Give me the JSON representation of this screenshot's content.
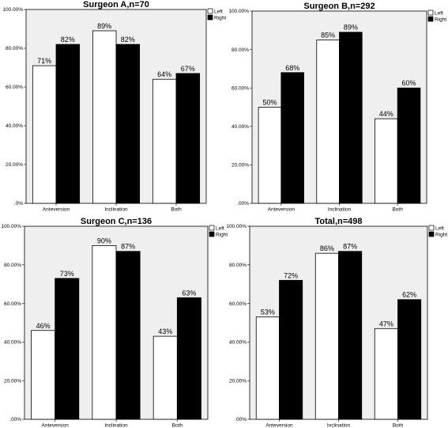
{
  "chart_data": [
    {
      "type": "bar",
      "title": "Surgeon A,n=70",
      "categories": [
        "Anteversion",
        "Inclination",
        "Both"
      ],
      "series": [
        {
          "name": "Left",
          "values": [
            71,
            89,
            64
          ],
          "labels": [
            "71%",
            "89%",
            "64%"
          ],
          "color": "#ffffff"
        },
        {
          "name": "Right",
          "values": [
            82,
            82,
            67
          ],
          "labels": [
            "82%",
            "82%",
            "67%"
          ],
          "color": "#000000"
        }
      ],
      "yticks": [
        ".0%",
        "20.00%",
        "40.00%",
        "60.00%",
        "80.00%",
        "100.00%"
      ],
      "ylim": [
        0,
        100
      ],
      "xlabel": "",
      "ylabel": "",
      "legend": "top-right",
      "grid": false
    },
    {
      "type": "bar",
      "title": "Surgeon B,n=292",
      "categories": [
        "Anteversion",
        "Inclination",
        "Both"
      ],
      "series": [
        {
          "name": "Left",
          "values": [
            50,
            85,
            44
          ],
          "labels": [
            "50%",
            "85%",
            "44%"
          ],
          "color": "#ffffff"
        },
        {
          "name": "Right",
          "values": [
            68,
            89,
            60
          ],
          "labels": [
            "68%",
            "89%",
            "60%"
          ],
          "color": "#000000"
        }
      ],
      "yticks": [
        ".00%",
        "20.00%",
        "40.00%",
        "60.00%",
        "80.00%",
        "100.00%"
      ],
      "ylim": [
        0,
        100
      ],
      "xlabel": "",
      "ylabel": "",
      "legend": "top-right",
      "grid": false
    },
    {
      "type": "bar",
      "title": "Surgeon C,n=136",
      "categories": [
        "Anteversion",
        "Inclination",
        "Both"
      ],
      "series": [
        {
          "name": "Left",
          "values": [
            46,
            90,
            43
          ],
          "labels": [
            "46%",
            "90%",
            "43%"
          ],
          "color": "#ffffff"
        },
        {
          "name": "Right",
          "values": [
            73,
            87,
            63
          ],
          "labels": [
            "73%",
            "87%",
            "63%"
          ],
          "color": "#000000"
        }
      ],
      "yticks": [
        ".00%",
        "20.00%",
        "40.00%",
        "60.00%",
        "80.00%",
        "100.00%"
      ],
      "ylim": [
        0,
        100
      ],
      "xlabel": "",
      "ylabel": "",
      "legend": "top-right",
      "grid": false
    },
    {
      "type": "bar",
      "title": "Total,n=498",
      "categories": [
        "Anteversion",
        "Inclination",
        "Both"
      ],
      "series": [
        {
          "name": "Left",
          "values": [
            53,
            86,
            47
          ],
          "labels": [
            "53%",
            "86%",
            "47%"
          ],
          "color": "#ffffff"
        },
        {
          "name": "Right",
          "values": [
            72,
            87,
            62
          ],
          "labels": [
            "72%",
            "87%",
            "62%"
          ],
          "color": "#000000"
        }
      ],
      "yticks": [
        ".00%",
        "20.00%",
        "40.00%",
        "60.00%",
        "80.00%",
        "100.00%"
      ],
      "ylim": [
        0,
        100
      ],
      "xlabel": "",
      "ylabel": "",
      "legend": "top-right",
      "grid": false
    }
  ],
  "colors": {
    "plot_background": "#efefef",
    "left_fill": "#ffffff",
    "right_fill": "#000000",
    "outline": "#000000"
  }
}
